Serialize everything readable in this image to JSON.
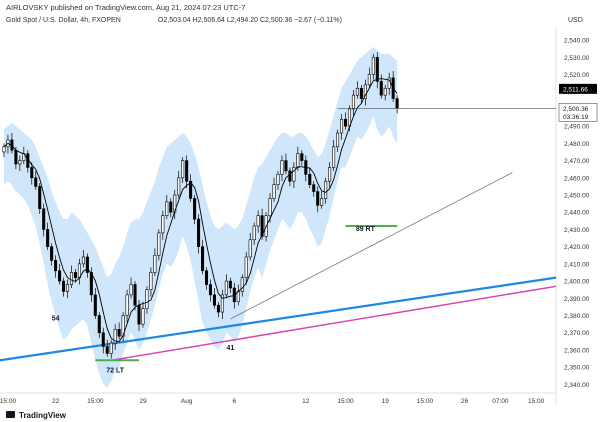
{
  "header": {
    "publisher": "AIRLOVSKY published on TradingView.com, Aug 21, 2024 07:23 UTC-7",
    "symbol_line": "Gold Spot / U.S. Dollar, 4h, FXOPEN",
    "ohlc": "O2,503.04  H2,506.64  L2,494.20  C2,500.36  −2.67 (−0.11%)",
    "currency": "USD"
  },
  "footer": {
    "brand": "TradingView"
  },
  "colors": {
    "up_candle": "#ffffff",
    "down_candle": "#000000",
    "candle_outline": "#000000",
    "band_fill": "#cfe6fb",
    "ma_line": "#000000",
    "blue_trend": "#1e88e5",
    "magenta_trend": "#d63fb0",
    "thin_trend": "#777777",
    "support_mark": "#4caf50",
    "price_badge_bg": "#000000",
    "price_badge_fg": "#ffffff"
  },
  "chart_data": {
    "type": "candlestick",
    "timeframe": "4h",
    "y_axis": {
      "ticks": [
        "2,540.00",
        "2,530.00",
        "2,520.00",
        "2,510.00",
        "2,500.00",
        "2,490.00",
        "2,480.00",
        "2,470.00",
        "2,460.00",
        "2,450.00",
        "2,440.00",
        "2,430.00",
        "2,420.00",
        "2,410.00",
        "2,400.00",
        "2,390.00",
        "2,380.00",
        "2,370.00",
        "2,360.00",
        "2,350.00",
        "2,340.00"
      ],
      "range": [
        2335,
        2547
      ]
    },
    "x_axis": {
      "ticks": [
        {
          "label": "15:00",
          "idx": 1
        },
        {
          "label": "22",
          "idx": 13
        },
        {
          "label": "15:00",
          "idx": 23
        },
        {
          "label": "29",
          "idx": 35
        },
        {
          "label": "Aug",
          "idx": 46
        },
        {
          "label": "6",
          "idx": 58
        },
        {
          "label": "12",
          "idx": 76
        },
        {
          "label": "15:00",
          "idx": 86
        },
        {
          "label": "19",
          "idx": 96
        },
        {
          "label": "15:00",
          "idx": 106
        },
        {
          "label": "26",
          "idx": 116
        },
        {
          "label": "07:00",
          "idx": 125
        },
        {
          "label": "15:00",
          "idx": 134
        }
      ],
      "idx_range": [
        -1,
        139
      ]
    },
    "last_price": "2,511.66",
    "current_price": "2,500.36",
    "countdown": "03:36:19",
    "current_price_value": 2500.36,
    "last_price_value": 2511.66,
    "closes": [
      2478,
      2482,
      2476,
      2468,
      2470,
      2474,
      2466,
      2460,
      2455,
      2442,
      2430,
      2420,
      2412,
      2406,
      2400,
      2394,
      2398,
      2405,
      2402,
      2410,
      2414,
      2405,
      2392,
      2380,
      2370,
      2362,
      2358,
      2364,
      2372,
      2368,
      2380,
      2392,
      2398,
      2386,
      2375,
      2384,
      2395,
      2405,
      2415,
      2428,
      2438,
      2446,
      2440,
      2450,
      2460,
      2470,
      2458,
      2448,
      2436,
      2420,
      2406,
      2398,
      2392,
      2386,
      2382,
      2392,
      2400,
      2396,
      2388,
      2394,
      2402,
      2414,
      2424,
      2432,
      2438,
      2426,
      2438,
      2448,
      2456,
      2462,
      2470,
      2464,
      2458,
      2466,
      2474,
      2470,
      2462,
      2456,
      2452,
      2444,
      2448,
      2458,
      2466,
      2478,
      2486,
      2494,
      2490,
      2500,
      2508,
      2512,
      2506,
      2514,
      2520,
      2530,
      2516,
      2508,
      2512,
      2518,
      2506,
      2500.36
    ],
    "bands": {
      "upper": [
        2488,
        2490,
        2492,
        2490,
        2488,
        2486,
        2484,
        2482,
        2478,
        2472,
        2466,
        2460,
        2452,
        2446,
        2440,
        2436,
        2436,
        2440,
        2438,
        2436,
        2432,
        2428,
        2424,
        2420,
        2414,
        2408,
        2402,
        2404,
        2410,
        2414,
        2420,
        2428,
        2434,
        2436,
        2436,
        2440,
        2446,
        2452,
        2458,
        2466,
        2472,
        2478,
        2480,
        2482,
        2484,
        2486,
        2484,
        2480,
        2474,
        2466,
        2456,
        2446,
        2438,
        2432,
        2430,
        2432,
        2434,
        2432,
        2430,
        2432,
        2436,
        2444,
        2452,
        2460,
        2466,
        2468,
        2472,
        2476,
        2480,
        2484,
        2486,
        2486,
        2484,
        2484,
        2486,
        2486,
        2484,
        2480,
        2476,
        2472,
        2474,
        2480,
        2488,
        2496,
        2504,
        2512,
        2516,
        2520,
        2524,
        2528,
        2530,
        2532,
        2534,
        2536,
        2534,
        2532,
        2532,
        2532,
        2530,
        2528
      ],
      "lower": [
        2456,
        2458,
        2456,
        2452,
        2450,
        2448,
        2444,
        2438,
        2432,
        2422,
        2410,
        2398,
        2388,
        2380,
        2372,
        2366,
        2368,
        2372,
        2374,
        2376,
        2378,
        2374,
        2364,
        2354,
        2346,
        2340,
        2338,
        2342,
        2348,
        2350,
        2358,
        2364,
        2370,
        2366,
        2360,
        2364,
        2370,
        2378,
        2386,
        2396,
        2404,
        2410,
        2408,
        2412,
        2418,
        2426,
        2420,
        2412,
        2400,
        2388,
        2376,
        2370,
        2366,
        2362,
        2360,
        2364,
        2370,
        2368,
        2364,
        2368,
        2374,
        2384,
        2394,
        2402,
        2408,
        2402,
        2410,
        2418,
        2424,
        2430,
        2436,
        2434,
        2430,
        2434,
        2440,
        2440,
        2436,
        2430,
        2426,
        2420,
        2422,
        2430,
        2438,
        2448,
        2458,
        2466,
        2466,
        2472,
        2478,
        2484,
        2482,
        2486,
        2490,
        2496,
        2488,
        2484,
        2486,
        2490,
        2484,
        2480
      ]
    },
    "trendlines": [
      {
        "name": "blue",
        "from": {
          "idx": -1,
          "price": 2354
        },
        "to": {
          "idx": 139,
          "price": 2402
        }
      },
      {
        "name": "magenta",
        "from": {
          "idx": 27,
          "price": 2354
        },
        "to": {
          "idx": 139,
          "price": 2397
        }
      },
      {
        "name": "thin",
        "from": {
          "idx": 57,
          "price": 2378
        },
        "to": {
          "idx": 128,
          "price": 2463
        }
      }
    ],
    "annotations": [
      {
        "text": "54",
        "idx": 13,
        "price": 2377
      },
      {
        "text": "72 LT",
        "idx": 28,
        "price": 2347
      },
      {
        "text": "41",
        "idx": 57,
        "price": 2360
      },
      {
        "text": "89 RT",
        "idx": 91,
        "price": 2429
      }
    ],
    "support_marks": [
      {
        "idx_from": 23,
        "idx_to": 34,
        "price": 2354
      },
      {
        "idx_from": 86,
        "idx_to": 99,
        "price": 2432
      }
    ]
  }
}
